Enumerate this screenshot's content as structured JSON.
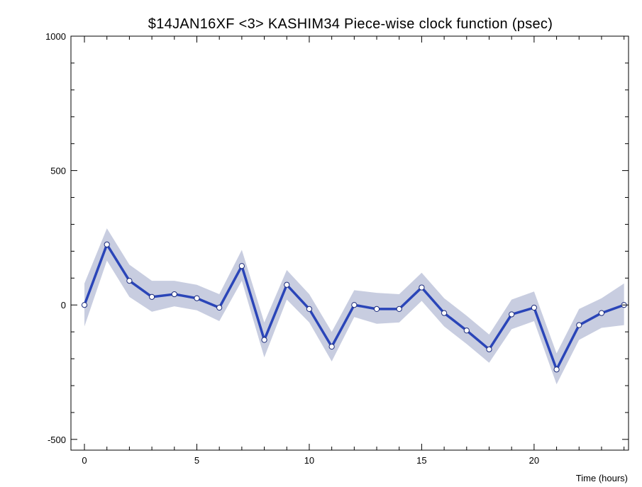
{
  "chart_data": {
    "type": "line",
    "title": "$14JAN16XF <3>   KASHIM34   Piece-wise clock function (psec)",
    "xlabel": "Time (hours)",
    "ylabel": "",
    "xlim": [
      -0.6,
      24.2
    ],
    "ylim": [
      -540,
      1000
    ],
    "x_ticks": [
      0,
      5,
      10,
      15,
      20
    ],
    "y_ticks": [
      -500,
      0,
      500,
      1000
    ],
    "grid": false,
    "colors": {
      "line": "#2a45b8",
      "band": "#c8cde0",
      "marker_fill": "#ffffff"
    },
    "series": [
      {
        "x": [
          0,
          1,
          2,
          3,
          4,
          5,
          6,
          7,
          8,
          9,
          10,
          11,
          12,
          13,
          14,
          15,
          16,
          17,
          18,
          19,
          20,
          21,
          22,
          23,
          24
        ],
        "values": [
          0,
          225,
          90,
          30,
          40,
          25,
          -10,
          145,
          -130,
          75,
          -15,
          -155,
          0,
          -15,
          -15,
          65,
          -30,
          -95,
          -165,
          -35,
          -10,
          -240,
          -75,
          -30,
          0
        ],
        "band_low": [
          -80,
          165,
          30,
          -25,
          -5,
          -20,
          -60,
          90,
          -195,
          20,
          -65,
          -210,
          -45,
          -70,
          -65,
          15,
          -80,
          -145,
          -215,
          -90,
          -60,
          -295,
          -130,
          -85,
          -75
        ],
        "band_high": [
          80,
          285,
          150,
          90,
          90,
          75,
          40,
          205,
          -65,
          130,
          40,
          -100,
          55,
          45,
          40,
          120,
          25,
          -40,
          -110,
          20,
          50,
          -180,
          -15,
          25,
          80
        ]
      }
    ]
  }
}
